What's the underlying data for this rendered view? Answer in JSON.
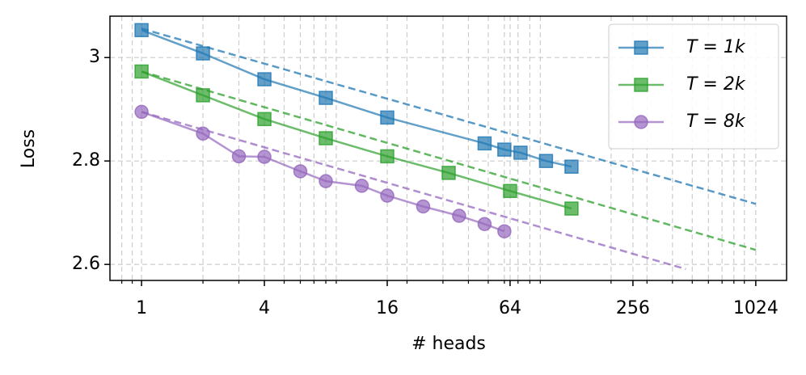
{
  "chart_data": {
    "type": "line",
    "x_label": "# heads",
    "y_label": "Loss",
    "xscale": "log2",
    "xlim": [
      0.7,
      1450
    ],
    "ylim": [
      2.569,
      3.08
    ],
    "xticks": [
      1,
      4,
      16,
      64,
      256,
      1024
    ],
    "xminorticks": [
      0.8,
      0.9,
      2,
      3,
      5,
      6,
      7,
      8,
      9,
      20,
      30,
      40,
      50,
      60,
      70,
      80,
      90,
      200,
      300,
      400,
      500,
      600,
      700,
      800,
      900
    ],
    "yticks": [
      2.6,
      2.8,
      3.0
    ],
    "grid": true,
    "legend": "upper right",
    "series": [
      {
        "name": "T = 1k",
        "color": "#1f77b4",
        "marker": "square",
        "x": [
          1,
          2,
          4,
          8,
          16,
          48,
          60,
          72,
          96,
          128
        ],
        "values": [
          3.053,
          3.008,
          2.958,
          2.922,
          2.884,
          2.834,
          2.822,
          2.816,
          2.8,
          2.789
        ],
        "fit_x": [
          1,
          1024
        ],
        "fit_values": [
          3.056,
          2.717
        ]
      },
      {
        "name": "T = 2k",
        "color": "#2ca02c",
        "marker": "square",
        "x": [
          1,
          2,
          4,
          8,
          16,
          32,
          64,
          128
        ],
        "values": [
          2.973,
          2.927,
          2.881,
          2.844,
          2.809,
          2.777,
          2.742,
          2.708
        ],
        "fit_x": [
          1,
          1024
        ],
        "fit_values": [
          2.973,
          2.628
        ]
      },
      {
        "name": "T = 8k",
        "color": "#9467bd",
        "marker": "circle",
        "x": [
          1,
          2,
          3,
          4,
          6,
          8,
          12,
          16,
          24,
          36,
          48,
          60
        ],
        "values": [
          2.895,
          2.853,
          2.809,
          2.808,
          2.78,
          2.761,
          2.752,
          2.733,
          2.712,
          2.694,
          2.678,
          2.664
        ],
        "fit_x": [
          1,
          465
        ],
        "fit_values": [
          2.895,
          2.591
        ]
      }
    ]
  }
}
